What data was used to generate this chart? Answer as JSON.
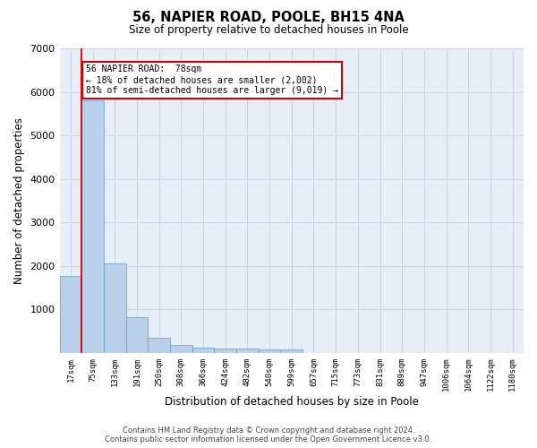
{
  "title": "56, NAPIER ROAD, POOLE, BH15 4NA",
  "subtitle": "Size of property relative to detached houses in Poole",
  "xlabel": "Distribution of detached houses by size in Poole",
  "ylabel": "Number of detached properties",
  "bin_labels": [
    "17sqm",
    "75sqm",
    "133sqm",
    "191sqm",
    "250sqm",
    "308sqm",
    "366sqm",
    "424sqm",
    "482sqm",
    "540sqm",
    "599sqm",
    "657sqm",
    "715sqm",
    "773sqm",
    "831sqm",
    "889sqm",
    "947sqm",
    "1006sqm",
    "1064sqm",
    "1122sqm",
    "1180sqm"
  ],
  "bar_values": [
    1780,
    5800,
    2060,
    830,
    340,
    190,
    130,
    110,
    110,
    85,
    80,
    0,
    0,
    0,
    0,
    0,
    0,
    0,
    0,
    0,
    0
  ],
  "bar_color": "#b8d0ea",
  "bar_edge_color": "#6699cc",
  "subject_sqm": 78,
  "subject_label": "56 NAPIER ROAD:  78sqm",
  "annotation_line1": "← 18% of detached houses are smaller (2,002)",
  "annotation_line2": "81% of semi-detached houses are larger (9,019) →",
  "box_facecolor": "#ffffff",
  "box_edgecolor": "#cc0000",
  "red_line_color": "#cc0000",
  "ylim": [
    0,
    7000
  ],
  "yticks": [
    0,
    1000,
    2000,
    3000,
    4000,
    5000,
    6000,
    7000
  ],
  "grid_color": "#c8d4e8",
  "background_color": "#e8eef8",
  "footer_line1": "Contains HM Land Registry data © Crown copyright and database right 2024.",
  "footer_line2": "Contains public sector information licensed under the Open Government Licence v3.0."
}
